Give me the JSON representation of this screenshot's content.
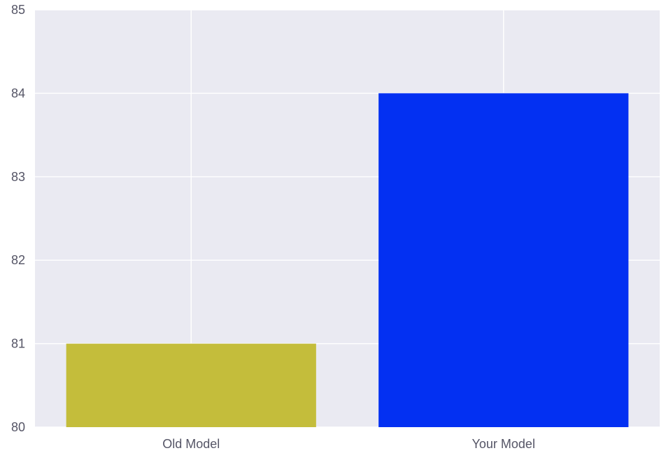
{
  "chart_data": {
    "type": "bar",
    "categories": [
      "Old Model",
      "Your Model"
    ],
    "values": [
      81,
      84
    ],
    "colors": [
      "#c4bd3b",
      "#0330f2"
    ],
    "title": "",
    "xlabel": "",
    "ylabel": "",
    "ylim": [
      80,
      85
    ],
    "yticks": [
      "80",
      "81",
      "82",
      "83",
      "84",
      "85"
    ],
    "grid": true,
    "background": "#eaeaf2",
    "legend": "none"
  }
}
